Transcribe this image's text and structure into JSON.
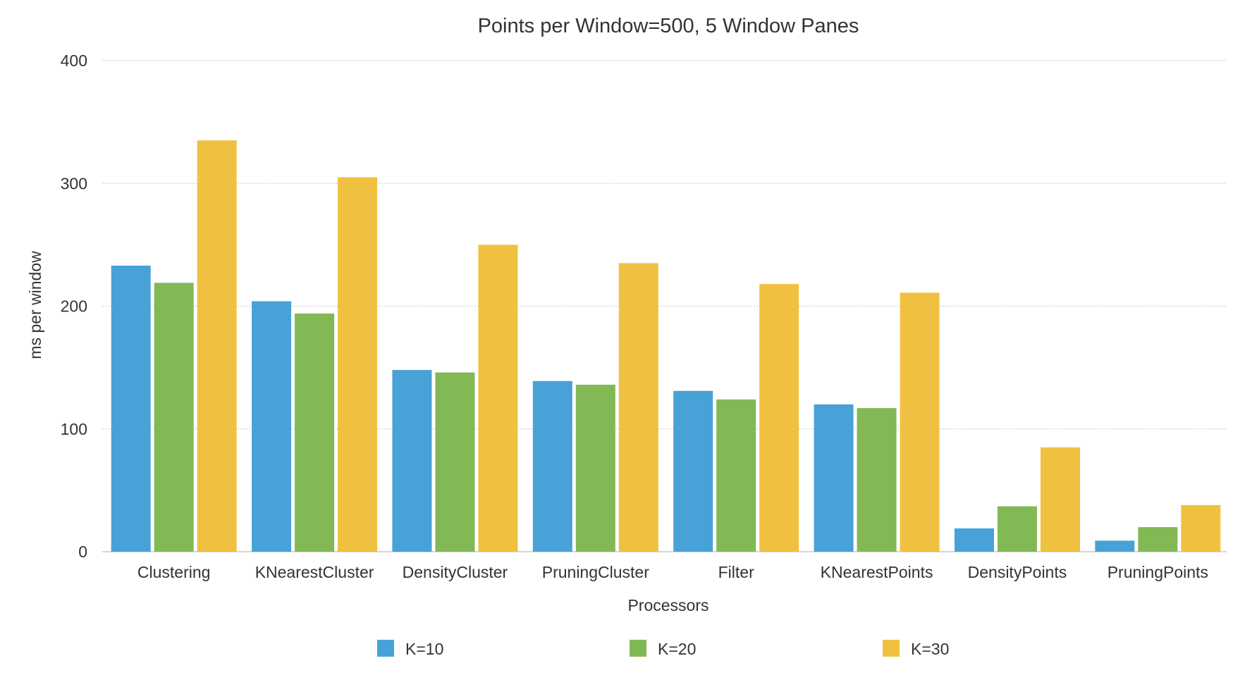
{
  "chart_data": {
    "type": "bar",
    "title": "Points per Window=500, 5 Window Panes",
    "xlabel": "Processors",
    "ylabel": "ms per window",
    "ylim": [
      0,
      400
    ],
    "yticks": [
      0,
      100,
      200,
      300,
      400
    ],
    "grid": true,
    "legend_position": "bottom",
    "categories": [
      "Clustering",
      "KNearestCluster",
      "DensityCluster",
      "PruningCluster",
      "Filter",
      "KNearestPoints",
      "DensityPoints",
      "PruningPoints"
    ],
    "series": [
      {
        "name": "K=10",
        "color": "#48a2d7",
        "values": [
          233,
          204,
          148,
          139,
          131,
          120,
          19,
          9
        ]
      },
      {
        "name": "K=20",
        "color": "#82b955",
        "values": [
          219,
          194,
          146,
          136,
          124,
          117,
          37,
          20
        ]
      },
      {
        "name": "K=30",
        "color": "#f0c141",
        "values": [
          335,
          305,
          250,
          235,
          218,
          211,
          85,
          38
        ]
      }
    ]
  }
}
